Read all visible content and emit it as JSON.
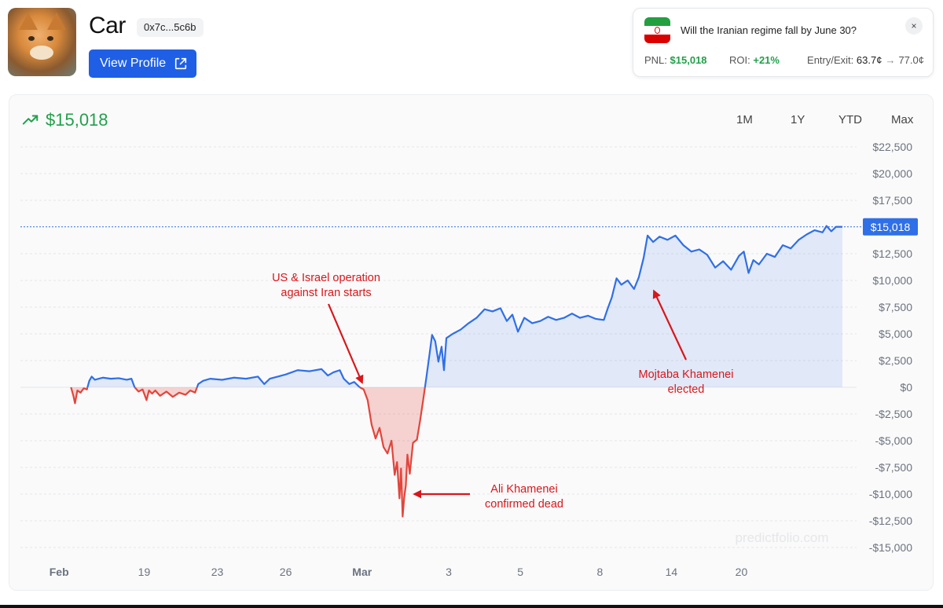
{
  "profile": {
    "name": "Car",
    "address": "0x7c...5c6b",
    "view_profile_label": "View Profile"
  },
  "market": {
    "question": "Will the Iranian regime fall by June 30?",
    "pnl_label": "PNL:",
    "pnl_value": "$15,018",
    "roi_label": "ROI:",
    "roi_value": "+21%",
    "entry_exit_label": "Entry/Exit:",
    "entry_value": "63.7¢",
    "exit_value": "77.0¢",
    "close_label": "×"
  },
  "header": {
    "pnl_total": "$15,018",
    "ranges": [
      "1M",
      "1Y",
      "YTD",
      "Max"
    ]
  },
  "colors": {
    "positive": "#2f6fe8",
    "negative": "#e2453c",
    "accent_green": "#22a04b",
    "annotation": "#d9161b"
  },
  "chart_data": {
    "type": "line",
    "title": "",
    "ylim": [
      -15000,
      22500
    ],
    "y_ticks": [
      22500,
      20000,
      17500,
      12500,
      10000,
      7500,
      5000,
      2500,
      0,
      -2500,
      -5000,
      -7500,
      -10000,
      -12500,
      -15000
    ],
    "y_tick_labels": [
      "$22,500",
      "$20,000",
      "$17,500",
      "$12,500",
      "$10,000",
      "$7,500",
      "$5,000",
      "$2,500",
      "$0",
      "-$2,500",
      "-$5,000",
      "-$7,500",
      "-$10,000",
      "-$12,500",
      "-$15,000"
    ],
    "x_range": [
      0,
      100
    ],
    "x_ticks": [
      {
        "x": 1.5,
        "label": "Feb"
      },
      {
        "x": 12.2,
        "label": "19"
      },
      {
        "x": 21.4,
        "label": "23"
      },
      {
        "x": 30.0,
        "label": "26"
      },
      {
        "x": 39.6,
        "label": "Mar"
      },
      {
        "x": 50.5,
        "label": "3"
      },
      {
        "x": 59.5,
        "label": "5"
      },
      {
        "x": 69.5,
        "label": "8"
      },
      {
        "x": 78.5,
        "label": "14"
      },
      {
        "x": 87.3,
        "label": "20"
      }
    ],
    "current_value": 15018,
    "current_label": "$15,018",
    "watermark": "predictfolio.com",
    "series": [
      {
        "name": "PNL",
        "points": [
          [
            3.0,
            0
          ],
          [
            3.3,
            -800
          ],
          [
            3.5,
            -1500
          ],
          [
            3.8,
            -300
          ],
          [
            4.2,
            -500
          ],
          [
            4.6,
            -100
          ],
          [
            5.0,
            -200
          ],
          [
            5.3,
            600
          ],
          [
            5.6,
            1000
          ],
          [
            6.0,
            700
          ],
          [
            7.0,
            900
          ],
          [
            8.0,
            800
          ],
          [
            9.0,
            850
          ],
          [
            10.0,
            700
          ],
          [
            10.6,
            800
          ],
          [
            11.0,
            0
          ],
          [
            11.5,
            -400
          ],
          [
            12.0,
            -200
          ],
          [
            12.5,
            -1200
          ],
          [
            12.8,
            -300
          ],
          [
            13.2,
            -600
          ],
          [
            13.6,
            -300
          ],
          [
            14.2,
            -800
          ],
          [
            15.0,
            -400
          ],
          [
            15.8,
            -900
          ],
          [
            16.6,
            -500
          ],
          [
            17.4,
            -700
          ],
          [
            18.0,
            -300
          ],
          [
            18.6,
            -500
          ],
          [
            19.0,
            300
          ],
          [
            19.6,
            600
          ],
          [
            20.5,
            800
          ],
          [
            22.0,
            700
          ],
          [
            23.5,
            900
          ],
          [
            25.0,
            800
          ],
          [
            26.5,
            1000
          ],
          [
            27.3,
            300
          ],
          [
            28.0,
            800
          ],
          [
            29.0,
            1000
          ],
          [
            30.0,
            1200
          ],
          [
            31.5,
            1600
          ],
          [
            33.0,
            1500
          ],
          [
            34.5,
            1700
          ],
          [
            35.3,
            1100
          ],
          [
            36.0,
            1400
          ],
          [
            36.8,
            1600
          ],
          [
            37.3,
            800
          ],
          [
            38.0,
            300
          ],
          [
            38.6,
            500
          ],
          [
            39.3,
            0
          ],
          [
            39.8,
            -200
          ],
          [
            40.3,
            -1200
          ],
          [
            40.8,
            -3500
          ],
          [
            41.3,
            -4800
          ],
          [
            41.8,
            -3800
          ],
          [
            42.3,
            -5600
          ],
          [
            42.8,
            -6200
          ],
          [
            43.3,
            -5000
          ],
          [
            43.7,
            -8200
          ],
          [
            44.0,
            -7000
          ],
          [
            44.3,
            -10400
          ],
          [
            44.5,
            -7600
          ],
          [
            44.7,
            -12100
          ],
          [
            44.9,
            -10300
          ],
          [
            45.1,
            -9200
          ],
          [
            45.3,
            -6300
          ],
          [
            45.6,
            -8100
          ],
          [
            46.0,
            -5200
          ],
          [
            46.5,
            -4900
          ],
          [
            46.9,
            -3100
          ],
          [
            47.3,
            -1100
          ],
          [
            47.7,
            1000
          ],
          [
            48.1,
            3200
          ],
          [
            48.4,
            4900
          ],
          [
            48.8,
            4300
          ],
          [
            49.2,
            2400
          ],
          [
            49.6,
            3800
          ],
          [
            49.9,
            1600
          ],
          [
            50.2,
            4600
          ],
          [
            51.0,
            5000
          ],
          [
            52.0,
            5400
          ],
          [
            53.0,
            6000
          ],
          [
            54.0,
            6500
          ],
          [
            55.0,
            7300
          ],
          [
            56.0,
            7100
          ],
          [
            57.0,
            7400
          ],
          [
            57.8,
            6200
          ],
          [
            58.5,
            6800
          ],
          [
            59.2,
            5200
          ],
          [
            60.0,
            6500
          ],
          [
            61.0,
            6000
          ],
          [
            62.0,
            6200
          ],
          [
            63.0,
            6600
          ],
          [
            64.0,
            6300
          ],
          [
            65.0,
            6500
          ],
          [
            66.0,
            6900
          ],
          [
            67.0,
            6500
          ],
          [
            68.0,
            6700
          ],
          [
            69.0,
            6400
          ],
          [
            70.0,
            6300
          ],
          [
            70.5,
            7400
          ],
          [
            71.0,
            8400
          ],
          [
            71.6,
            10200
          ],
          [
            72.2,
            9600
          ],
          [
            73.0,
            10000
          ],
          [
            73.8,
            9200
          ],
          [
            74.4,
            10300
          ],
          [
            75.0,
            12100
          ],
          [
            75.5,
            14200
          ],
          [
            76.2,
            13600
          ],
          [
            77.0,
            14100
          ],
          [
            78.0,
            13800
          ],
          [
            79.0,
            14200
          ],
          [
            80.0,
            13300
          ],
          [
            81.0,
            12700
          ],
          [
            82.0,
            12900
          ],
          [
            83.0,
            12400
          ],
          [
            84.0,
            11200
          ],
          [
            85.0,
            11800
          ],
          [
            86.0,
            11000
          ],
          [
            87.0,
            12300
          ],
          [
            87.6,
            12700
          ],
          [
            88.2,
            10700
          ],
          [
            88.8,
            11900
          ],
          [
            89.5,
            11500
          ],
          [
            90.5,
            12500
          ],
          [
            91.5,
            12200
          ],
          [
            92.5,
            13300
          ],
          [
            93.5,
            13000
          ],
          [
            94.5,
            13800
          ],
          [
            95.5,
            14300
          ],
          [
            96.5,
            14700
          ],
          [
            97.5,
            14500
          ],
          [
            98.0,
            15100
          ],
          [
            98.6,
            14600
          ],
          [
            99.2,
            15018
          ],
          [
            100,
            15018
          ]
        ]
      }
    ],
    "annotations": [
      {
        "text": [
          "US & Israel operation",
          "against Iran starts"
        ],
        "target": [
          39.8,
          0
        ]
      },
      {
        "text": [
          "Ali Khamenei",
          "confirmed dead"
        ],
        "target": [
          45.0,
          -10000
        ]
      },
      {
        "text": [
          "Mojtaba Khamenei",
          "elected"
        ],
        "target": [
          76.0,
          9600
        ]
      }
    ]
  }
}
